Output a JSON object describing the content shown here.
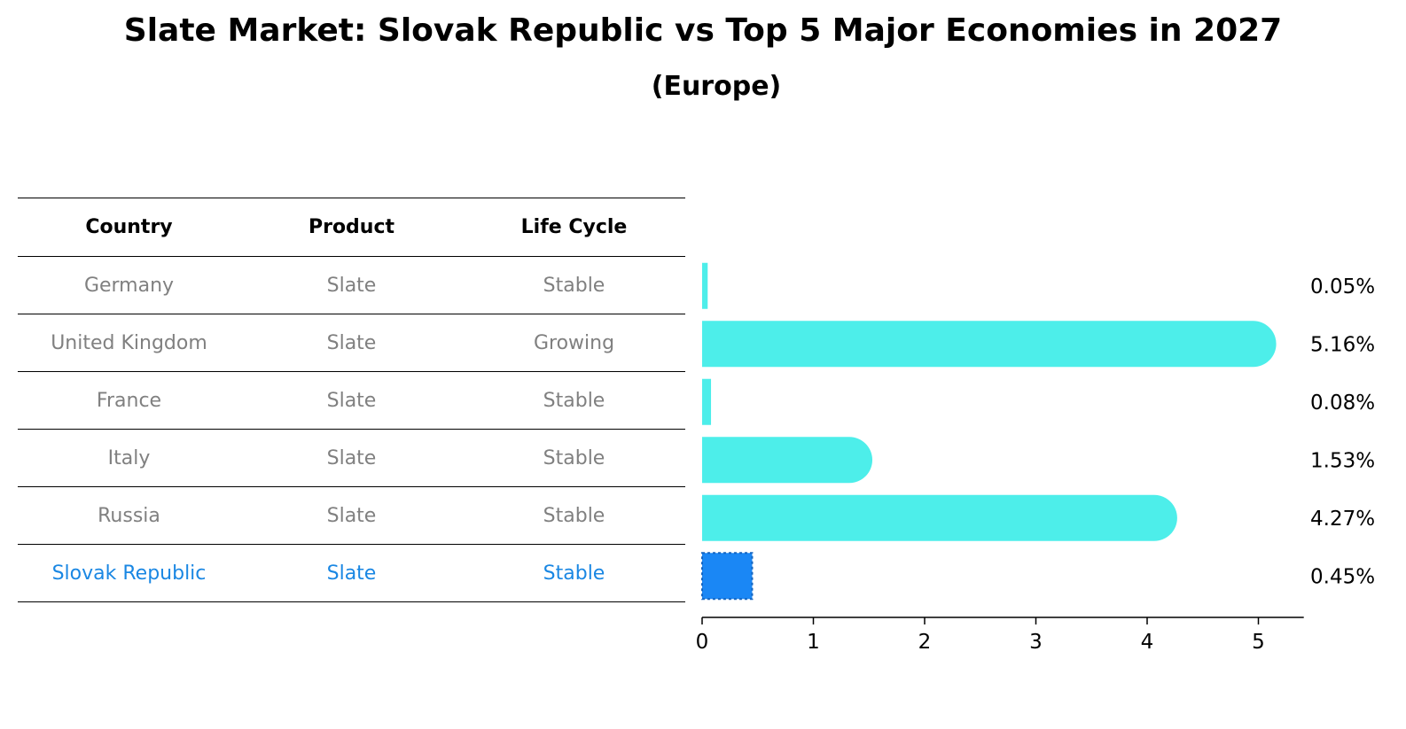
{
  "title": "Slate Market: Slovak Republic vs Top 5 Major Economies in 2027",
  "subtitle": "(Europe)",
  "table": {
    "headers": [
      "Country",
      "Product",
      "Life Cycle"
    ],
    "rows": [
      {
        "country": "Germany",
        "product": "Slate",
        "life_cycle": "Stable"
      },
      {
        "country": "United Kingdom",
        "product": "Slate",
        "life_cycle": "Growing"
      },
      {
        "country": "France",
        "product": "Slate",
        "life_cycle": "Stable"
      },
      {
        "country": "Italy",
        "product": "Slate",
        "life_cycle": "Stable"
      },
      {
        "country": "Russia",
        "product": "Slate",
        "life_cycle": "Stable"
      },
      {
        "country": "Slovak Republic",
        "product": "Slate",
        "life_cycle": "Stable"
      }
    ]
  },
  "colors": {
    "bar": "#4deeea",
    "highlight": "#1a87f5",
    "highlight_text": "#1a87e3",
    "muted_text": "#808080"
  },
  "chart_data": {
    "type": "bar",
    "orientation": "horizontal",
    "categories": [
      "Germany",
      "United Kingdom",
      "France",
      "Italy",
      "Russia",
      "Slovak Republic"
    ],
    "values": [
      0.05,
      5.16,
      0.08,
      1.53,
      4.27,
      0.45
    ],
    "data_labels": [
      "0.05%",
      "5.16%",
      "0.08%",
      "1.53%",
      "4.27%",
      "0.45%"
    ],
    "highlight_index": 5,
    "xlim": [
      0,
      5.4
    ],
    "xticks": [
      0,
      1,
      2,
      3,
      4,
      5
    ],
    "xlabel": "",
    "ylabel": "",
    "grid": false
  }
}
